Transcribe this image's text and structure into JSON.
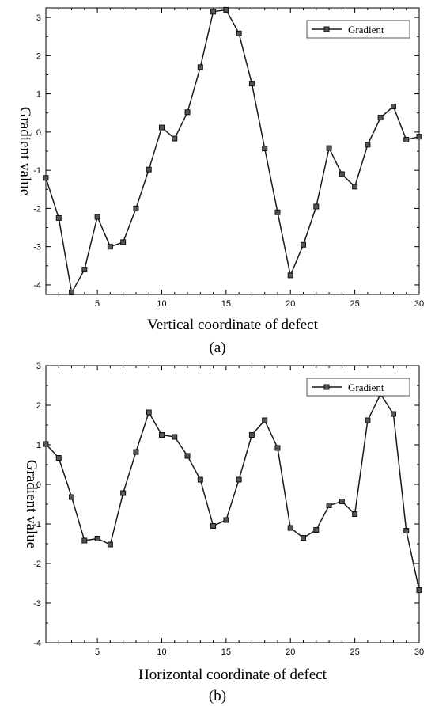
{
  "panels": [
    {
      "panel_label_text": "(a)",
      "chart_data": {
        "type": "line",
        "xlabel": "Vertical coordinate of defect",
        "ylabel": "Gradient value",
        "xlim": [
          1,
          30
        ],
        "ylim": [
          -4.25,
          3.25
        ],
        "xticks": [
          5,
          10,
          15,
          20,
          25,
          30
        ],
        "yticks": [
          -4,
          -3,
          -2,
          -1,
          0,
          1,
          2,
          3
        ],
        "grid": false,
        "legend": "top-right",
        "series": [
          {
            "name": "Gradient",
            "x": [
              1,
              2,
              3,
              4,
              5,
              6,
              7,
              8,
              9,
              10,
              11,
              12,
              13,
              14,
              15,
              16,
              17,
              18,
              19,
              20,
              21,
              22,
              23,
              24,
              25,
              26,
              27,
              28,
              29,
              30
            ],
            "values": [
              -1.2,
              -2.25,
              -4.2,
              -3.6,
              -2.22,
              -3.0,
              -2.88,
              -2.0,
              -0.98,
              0.12,
              -0.17,
              0.52,
              1.7,
              3.15,
              3.2,
              2.58,
              1.27,
              -0.43,
              -2.1,
              -3.75,
              -2.95,
              -1.95,
              -0.42,
              -1.1,
              -1.43,
              -0.33,
              0.38,
              0.67,
              -0.2,
              -0.12
            ]
          }
        ]
      }
    },
    {
      "panel_label_text": "(b)",
      "chart_data": {
        "type": "line",
        "xlabel": "Horizontal coordinate of defect",
        "ylabel": "Gradient value",
        "xlim": [
          1,
          30
        ],
        "ylim": [
          -4,
          3
        ],
        "xticks": [
          5,
          10,
          15,
          20,
          25,
          30
        ],
        "yticks": [
          -4,
          -3,
          -2,
          -1,
          0,
          1,
          2,
          3
        ],
        "grid": false,
        "legend": "top-right",
        "series": [
          {
            "name": "Gradient",
            "x": [
              1,
              2,
              3,
              4,
              5,
              6,
              7,
              8,
              9,
              10,
              11,
              12,
              13,
              14,
              15,
              16,
              17,
              18,
              19,
              20,
              21,
              22,
              23,
              24,
              25,
              26,
              27,
              28,
              29,
              30
            ],
            "values": [
              1.02,
              0.67,
              -0.32,
              -1.42,
              -1.37,
              -1.52,
              -0.22,
              0.82,
              1.82,
              1.25,
              1.2,
              0.72,
              0.12,
              -1.05,
              -0.9,
              0.12,
              1.25,
              1.62,
              0.92,
              -1.1,
              -1.35,
              -1.15,
              -0.53,
              -0.43,
              -0.75,
              1.62,
              2.28,
              1.78,
              -1.17,
              -2.67
            ]
          }
        ]
      }
    }
  ]
}
